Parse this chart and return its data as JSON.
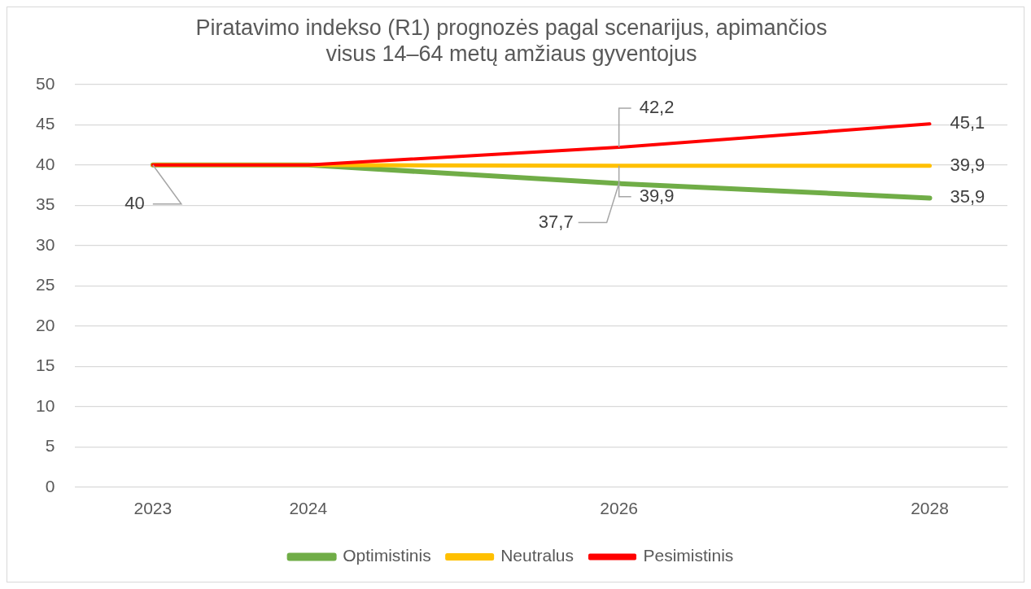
{
  "chart_data": {
    "type": "line",
    "title": "Piratavimo indekso (R1) prognozės pagal scenarijus, apimančios visus 14–64 metų amžiaus gyventojus",
    "x": [
      2023,
      2024,
      2026,
      2028
    ],
    "series": [
      {
        "name": "Optimistinis",
        "color": "#70ad47",
        "values": [
          40,
          40,
          37.7,
          35.9
        ],
        "value_labels": [
          null,
          null,
          "37,7",
          "35,9"
        ]
      },
      {
        "name": "Neutralus",
        "color": "#ffc000",
        "values": [
          40,
          40,
          39.9,
          39.9
        ],
        "value_labels": [
          null,
          null,
          "39,9",
          "39,9"
        ]
      },
      {
        "name": "Pesimistinis",
        "color": "#ff0000",
        "values": [
          40,
          40,
          42.2,
          45.1
        ],
        "value_labels": [
          "40",
          null,
          "42,2",
          "45,1"
        ]
      }
    ],
    "xlim": [
      2022.5,
      2028.5
    ],
    "xticks": [
      2023,
      2024,
      2026,
      2028
    ],
    "ylim": [
      0,
      50
    ],
    "yticks": [
      0,
      5,
      10,
      15,
      20,
      25,
      30,
      35,
      40,
      45,
      50
    ],
    "grid": "y",
    "legend": "bottom",
    "marker": "none",
    "line_style": "solid"
  }
}
